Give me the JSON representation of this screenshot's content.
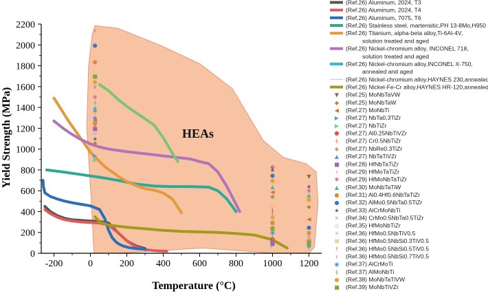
{
  "chart_data": {
    "type": "line+scatter",
    "title": "",
    "xlabel": "Temperature (°C)",
    "ylabel": "Yield Strength (MPa)",
    "xlim": [
      -270,
      1270
    ],
    "ylim": [
      0,
      2200
    ],
    "xticks": [
      -200,
      0,
      200,
      400,
      600,
      800,
      1000,
      1200
    ],
    "yticks": [
      0,
      200,
      400,
      600,
      800,
      1000,
      1200,
      1400,
      1600,
      1800,
      2000,
      2200
    ],
    "annotation": "HEAs",
    "hea_region": {
      "fill": "#f6b893",
      "stroke": "#e49a78",
      "points": [
        [
          25,
          2185
        ],
        [
          150,
          2160
        ],
        [
          380,
          2000
        ],
        [
          600,
          1820
        ],
        [
          780,
          1580
        ],
        [
          950,
          1080
        ],
        [
          1060,
          920
        ],
        [
          1185,
          860
        ],
        [
          1240,
          780
        ],
        [
          1250,
          480
        ],
        [
          1230,
          60
        ],
        [
          1200,
          0
        ],
        [
          1010,
          0
        ],
        [
          620,
          50
        ],
        [
          330,
          20
        ],
        [
          150,
          0
        ],
        [
          20,
          0
        ],
        [
          5,
          500
        ],
        [
          -20,
          1200
        ],
        [
          -10,
          1800
        ],
        [
          10,
          2100
        ]
      ]
    },
    "series": [
      {
        "name": "(Ref.26) Aluminum, 2024, T3",
        "color": "#555555",
        "x": [
          -250,
          -220,
          -180,
          -140,
          -100,
          -50,
          0,
          50,
          100,
          150,
          200,
          250,
          300
        ],
        "y": [
          450,
          400,
          360,
          335,
          322,
          315,
          310,
          305,
          290,
          200,
          120,
          70,
          45
        ]
      },
      {
        "name": "(Ref.26) Aluminum, 2024, T4",
        "color": "#e05a5a",
        "x": [
          -250,
          -220,
          -180,
          -140,
          -100,
          -50,
          0,
          50,
          100,
          150,
          200,
          250,
          300,
          350,
          420
        ],
        "y": [
          420,
          380,
          345,
          322,
          310,
          300,
          295,
          290,
          270,
          200,
          120,
          60,
          35,
          25,
          20
        ]
      },
      {
        "name": "(Ref.26) Aluminum, 7075, T6",
        "color": "#2a6fb8",
        "x": [
          -260,
          -258,
          -250,
          -220,
          -180,
          -140,
          -100,
          -50,
          0,
          50,
          80,
          100,
          120,
          140,
          160,
          180,
          210,
          250,
          300
        ],
        "y": [
          700,
          640,
          580,
          545,
          520,
          500,
          485,
          470,
          455,
          420,
          330,
          220,
          150,
          110,
          85,
          70,
          55,
          45,
          40
        ]
      },
      {
        "name": "(Ref.26) Stainless steel, martensitic,PH 13-8Mo,H950",
        "color": "#2fa896",
        "x": [
          -240,
          -150,
          -50,
          50,
          150,
          250,
          350,
          450,
          550,
          650,
          700,
          750,
          800
        ],
        "y": [
          800,
          780,
          755,
          730,
          700,
          665,
          645,
          640,
          640,
          635,
          600,
          520,
          400
        ]
      },
      {
        "name": "(Ref.26) Titanium, alpha-beta alloy,Ti-6Al-4V, solution treated and aged",
        "color": "#e29a3a",
        "x": [
          -200,
          -160,
          -120,
          -80,
          -40,
          0,
          40,
          80,
          120,
          160,
          200,
          250,
          300,
          350,
          400,
          450,
          500
        ],
        "y": [
          1490,
          1380,
          1270,
          1170,
          1070,
          970,
          900,
          830,
          780,
          730,
          690,
          650,
          620,
          605,
          580,
          520,
          390
        ]
      },
      {
        "name": "(Ref.26) Nickel-chromium alloy, INCONEL 718, solution treated and aged",
        "color": "#b173b9",
        "x": [
          -200,
          -150,
          -100,
          -50,
          0,
          50,
          100,
          200,
          300,
          400,
          500,
          550,
          600,
          650,
          700,
          750,
          800,
          820
        ],
        "y": [
          1270,
          1200,
          1140,
          1090,
          1050,
          1020,
          1000,
          975,
          955,
          935,
          915,
          905,
          880,
          860,
          780,
          640,
          470,
          400
        ]
      },
      {
        "name": "(Ref.26) Nickel-chromium alloy,INCONEL X-750, annealed and aged",
        "color": "#3bb7d6",
        "x": [],
        "y": []
      },
      {
        "name": "(Ref.26) Nickel-chromium alloy,HAYNES 230,annealed",
        "color": "#7cc576",
        "x": [
          50,
          100,
          150,
          200,
          250,
          300,
          350,
          400,
          450,
          480
        ],
        "y": [
          1620,
          1560,
          1480,
          1410,
          1350,
          1290,
          1230,
          1110,
          960,
          880
        ]
      },
      {
        "name": "(Ref.26) Nickel-Fe-Cr alloy,HAYNES HR-120,annealed",
        "color": "#a39a1b",
        "x": [
          25,
          50,
          100,
          200,
          300,
          400,
          500,
          600,
          700,
          800,
          900,
          1000,
          1050,
          1080
        ],
        "y": [
          350,
          300,
          270,
          250,
          235,
          220,
          210,
          205,
          200,
          190,
          175,
          130,
          80,
          50
        ]
      }
    ],
    "scatter": [
      {
        "name": "(Ref.25) MoNbTaVW",
        "marker": "▼",
        "color": "#8a6a52",
        "x": [
          25,
          1000,
          1200
        ],
        "y": [
          1240,
          820,
          740
        ]
      },
      {
        "name": "(Ref.25) MoNbTaW",
        "marker": "◆",
        "color": "#b5862d",
        "x": [
          25,
          1000,
          1200
        ],
        "y": [
          1060,
          550,
          450
        ]
      },
      {
        "name": "(Ref.27) MoNbTi",
        "marker": "◀",
        "color": "#e36b2d",
        "x": [
          25,
          1000,
          1200
        ],
        "y": [
          1280,
          590,
          330
        ]
      },
      {
        "name": "(Ref.27) NbTa0.3TiZr",
        "marker": "▶",
        "color": "#4aa3df",
        "x": [
          25,
          1000
        ],
        "y": [
          940,
          120
        ]
      },
      {
        "name": "(Ref.27) NbTiZr",
        "marker": "▶",
        "color": "#6fcf86",
        "x": [
          25,
          1000
        ],
        "y": [
          900,
          80
        ]
      },
      {
        "name": "(Ref.27) Al0.25NbTiVZr",
        "marker": "⬟",
        "color": "#e04f4f",
        "x": [
          25,
          1000
        ],
        "y": [
          1250,
          140
        ]
      },
      {
        "name": "(Ref.27) Cr0.5NbTiZr",
        "marker": "ǂ",
        "color": "#e8901f",
        "x": [
          25,
          1000
        ],
        "y": [
          1260,
          260
        ]
      },
      {
        "name": "(Ref.27) NbRe0.3TiZr",
        "marker": "◆",
        "color": "#c9a35a",
        "x": [
          25,
          1000
        ],
        "y": [
          1200,
          350
        ]
      },
      {
        "name": "(Ref.27) NbTaTiVZr",
        "marker": "▲",
        "color": "#5b9bd5",
        "x": [
          25,
          1000,
          1200
        ],
        "y": [
          1400,
          300,
          90
        ]
      },
      {
        "name": "(Ref.28) HfNbTaTiZr",
        "marker": "■",
        "color": "#a064b4",
        "x": [
          25,
          1000,
          1200
        ],
        "y": [
          1200,
          100,
          120
        ]
      },
      {
        "name": "(Ref.29) HfMoTaTiZr",
        "marker": "ı",
        "color": "#d24fa0",
        "x": [
          25,
          1000,
          1200
        ],
        "y": [
          1600,
          820,
          650
        ]
      },
      {
        "name": "(Ref.29) HfMoNbTaTiZr",
        "marker": "✱",
        "color": "#e06a8a",
        "x": [
          25,
          1000,
          1200
        ],
        "y": [
          1500,
          830,
          600
        ]
      },
      {
        "name": "(Ref.30) MoNbTaTiW",
        "marker": "▲",
        "color": "#3dbfa0",
        "x": [
          25,
          1000,
          1200
        ],
        "y": [
          1380,
          640,
          560
        ]
      },
      {
        "name": "(Ref.31) Al0.4Hf0.6NbTaTiZr",
        "marker": "●",
        "color": "#e38a2e",
        "x": [
          25,
          1000,
          1200
        ],
        "y": [
          1840,
          300,
          200
        ]
      },
      {
        "name": "(Ref.32) AlMo0.5NbTa0.5TiZr",
        "marker": "●",
        "color": "#3a76c4",
        "x": [
          25,
          1000,
          1200
        ],
        "y": [
          2000,
          750,
          250
        ]
      },
      {
        "name": "(Ref.33) AlCrMoNbTi",
        "marker": "★",
        "color": "#4a5a8a",
        "x": [
          25,
          1000,
          1200
        ],
        "y": [
          1100,
          800,
          640
        ]
      },
      {
        "name": "(Ref.34) CrMo0.5NbTa0.5TiZr",
        "marker": "✕",
        "color": "#9aa0a6",
        "x": [
          25,
          1000,
          1200
        ],
        "y": [
          1600,
          540,
          170
        ]
      },
      {
        "name": "(Ref.35) HfMoNbTiZr",
        "marker": "◇",
        "color": "#e6a23c",
        "x": [
          25,
          1000,
          1200
        ],
        "y": [
          1700,
          450,
          200
        ]
      },
      {
        "name": "(Ref.36) HfMo0.5NbTiV0.5",
        "marker": "✕",
        "color": "#bfa7d6",
        "x": [
          25,
          1000,
          1200
        ],
        "y": [
          1150,
          400,
          160
        ]
      },
      {
        "name": "(Ref.36) HfMo0.5NbSi0.3TiV0.5",
        "marker": "⊠",
        "color": "#d8b04a",
        "x": [
          25,
          1000,
          1200
        ],
        "y": [
          1250,
          350,
          140
        ]
      },
      {
        "name": "(Ref.36) HfMo0.5NbSi0.5TiV0.5",
        "marker": "†",
        "color": "#e0774a",
        "x": [
          25,
          1000,
          1200
        ],
        "y": [
          1350,
          380,
          110
        ]
      },
      {
        "name": "(Ref.36) HfMo0.5NbSi0.7TiV0.5",
        "marker": "ı",
        "color": "#d0402a",
        "x": [
          25,
          1000,
          1200
        ],
        "y": [
          2140,
          420,
          100
        ]
      },
      {
        "name": "(Ref.37) AlCrMoTi",
        "marker": "◉",
        "color": "#4a8fd8",
        "x": [
          25,
          1000,
          1200
        ],
        "y": [
          1300,
          200,
          80
        ]
      },
      {
        "name": "(Ref.37) AlMoNbTi",
        "marker": "ǂ",
        "color": "#5bbf7a",
        "x": [
          25,
          1000,
          1200
        ],
        "y": [
          1450,
          160,
          60
        ]
      },
      {
        "name": "(Ref.38) MoNbTaTiVW",
        "marker": "●",
        "color": "#e8a030",
        "x": [
          25,
          1000,
          1200
        ],
        "y": [
          1650,
          700,
          520
        ]
      },
      {
        "name": "(Ref.39) MoNbTiVZr",
        "marker": "■",
        "color": "#86a83a",
        "x": [
          25,
          1000,
          1200
        ],
        "y": [
          1700,
          240,
          100
        ]
      }
    ],
    "legend": [
      {
        "type": "line",
        "color": "#555555",
        "lines": [
          "(Ref.26) Aluminum, 2024, T3"
        ]
      },
      {
        "type": "line",
        "color": "#e05a5a",
        "lines": [
          "(Ref.26) Aluminum, 2024, T4"
        ]
      },
      {
        "type": "line",
        "color": "#2a6fb8",
        "lines": [
          "(Ref.26) Aluminum, 7075, T6"
        ]
      },
      {
        "type": "line",
        "color": "#2fa896",
        "lines": [
          "(Ref.26) Stainless steel, martensitic,PH 13-8Mo,H950"
        ]
      },
      {
        "type": "line",
        "color": "#e29a3a",
        "lines": [
          "(Ref.26) Titanium, alpha-beta alloy,Ti-6Al-4V,",
          "solution treated and aged"
        ]
      },
      {
        "type": "line",
        "color": "#b173b9",
        "lines": [
          "(Ref.26) Nickel-chromium alloy, INCONEL 718,",
          "solution treated and aged"
        ]
      },
      {
        "type": "line",
        "color": "#3bb7d6",
        "lines": [
          "(Ref.26) Nickel-chromium alloy,INCONEL X-750,",
          "annealed and aged"
        ]
      },
      {
        "type": "thin",
        "color": "#a5d6a7",
        "lines": [
          "(Ref.26) Nickel-chromium alloy,HAYNES 230,annealed"
        ]
      },
      {
        "type": "line",
        "color": "#a39a1b",
        "lines": [
          "(Ref.26) Nickel-Fe-Cr alloy,HAYNES HR-120,annealed"
        ]
      },
      {
        "type": "marker",
        "marker": "▼",
        "color": "#8a6a52",
        "lines": [
          "(Ref.25) MoNbTaVW"
        ]
      },
      {
        "type": "marker",
        "marker": "◆",
        "color": "#b5862d",
        "lines": [
          "(Ref.25) MoNbTaW"
        ]
      },
      {
        "type": "marker",
        "marker": "◀",
        "color": "#e36b2d",
        "lines": [
          "(Ref.27) MoNbTi"
        ]
      },
      {
        "type": "marker",
        "marker": "▶",
        "color": "#4aa3df",
        "lines": [
          "(Ref.27) NbTa0.3TiZr"
        ]
      },
      {
        "type": "marker",
        "marker": "▶",
        "color": "#6fcf86",
        "lines": [
          "(Ref.27) NbTiZr"
        ]
      },
      {
        "type": "marker",
        "marker": "⬟",
        "color": "#e04f4f",
        "lines": [
          "(Ref.27) Al0.25NbTiVZr"
        ]
      },
      {
        "type": "marker",
        "marker": "ǂ",
        "color": "#e8901f",
        "lines": [
          "(Ref.27) Cr0.5NbTiZr"
        ]
      },
      {
        "type": "marker",
        "marker": "◆",
        "color": "#c9a35a",
        "lines": [
          "(Ref.27) NbRe0.3TiZr"
        ]
      },
      {
        "type": "marker",
        "marker": "▲",
        "color": "#5b9bd5",
        "lines": [
          "(Ref.27) NbTaTiVZr"
        ]
      },
      {
        "type": "marker",
        "marker": "■",
        "color": "#a064b4",
        "lines": [
          "(Ref.28) HfNbTaTiZr"
        ]
      },
      {
        "type": "marker",
        "marker": "ı",
        "color": "#d24fa0",
        "lines": [
          "(Ref.29) HfMoTaTiZr"
        ]
      },
      {
        "type": "marker",
        "marker": "✱",
        "color": "#e06a8a",
        "lines": [
          "(Ref.29) HfMoNbTaTiZr"
        ]
      },
      {
        "type": "marker",
        "marker": "▲",
        "color": "#3dbfa0",
        "lines": [
          "(Ref.30) MoNbTaTiW"
        ]
      },
      {
        "type": "marker",
        "marker": "●",
        "color": "#e38a2e",
        "lines": [
          "(Ref.31) Al0.4Hf0.6NbTaTiZr"
        ]
      },
      {
        "type": "marker",
        "marker": "●",
        "color": "#3a76c4",
        "lines": [
          "(Ref.32) AlMo0.5NbTa0.5TiZr"
        ]
      },
      {
        "type": "marker",
        "marker": "★",
        "color": "#4a5a8a",
        "lines": [
          "(Ref.33) AlCrMoNbTi"
        ]
      },
      {
        "type": "marker",
        "marker": "✕",
        "color": "#9aa0a6",
        "lines": [
          "(Ref.34) CrMo0.5NbTa0.5TiZr"
        ]
      },
      {
        "type": "marker",
        "marker": "◇",
        "color": "#e6a23c",
        "lines": [
          "(Ref.35) HfMoNbTiZr"
        ]
      },
      {
        "type": "marker",
        "marker": "✕",
        "color": "#bfa7d6",
        "lines": [
          "(Ref.36) HfMo0.5NbTiV0.5"
        ]
      },
      {
        "type": "marker",
        "marker": "⊠",
        "color": "#d8b04a",
        "lines": [
          "(Ref.36) HfMo0.5NbSi0.3TiV0.5"
        ]
      },
      {
        "type": "marker",
        "marker": "†",
        "color": "#e0774a",
        "lines": [
          "(Ref.36) HfMo0.5NbSi0.5TiV0.5"
        ]
      },
      {
        "type": "marker",
        "marker": "ı",
        "color": "#d0402a",
        "lines": [
          "(Ref.36) HfMo0.5NbSi0.7TiV0.5"
        ]
      },
      {
        "type": "marker",
        "marker": "◉",
        "color": "#4a8fd8",
        "lines": [
          "(Ref.37) AlCrMoTi"
        ]
      },
      {
        "type": "marker",
        "marker": "ǂ",
        "color": "#5bbf7a",
        "lines": [
          "(Ref.37) AlMoNbTi"
        ]
      },
      {
        "type": "marker",
        "marker": "●",
        "color": "#e8a030",
        "lines": [
          "(Ref.38) MoNbTaTiVW"
        ]
      },
      {
        "type": "marker",
        "marker": "■",
        "color": "#86a83a",
        "lines": [
          "(Ref.39) MoNbTiVZr"
        ]
      }
    ]
  }
}
